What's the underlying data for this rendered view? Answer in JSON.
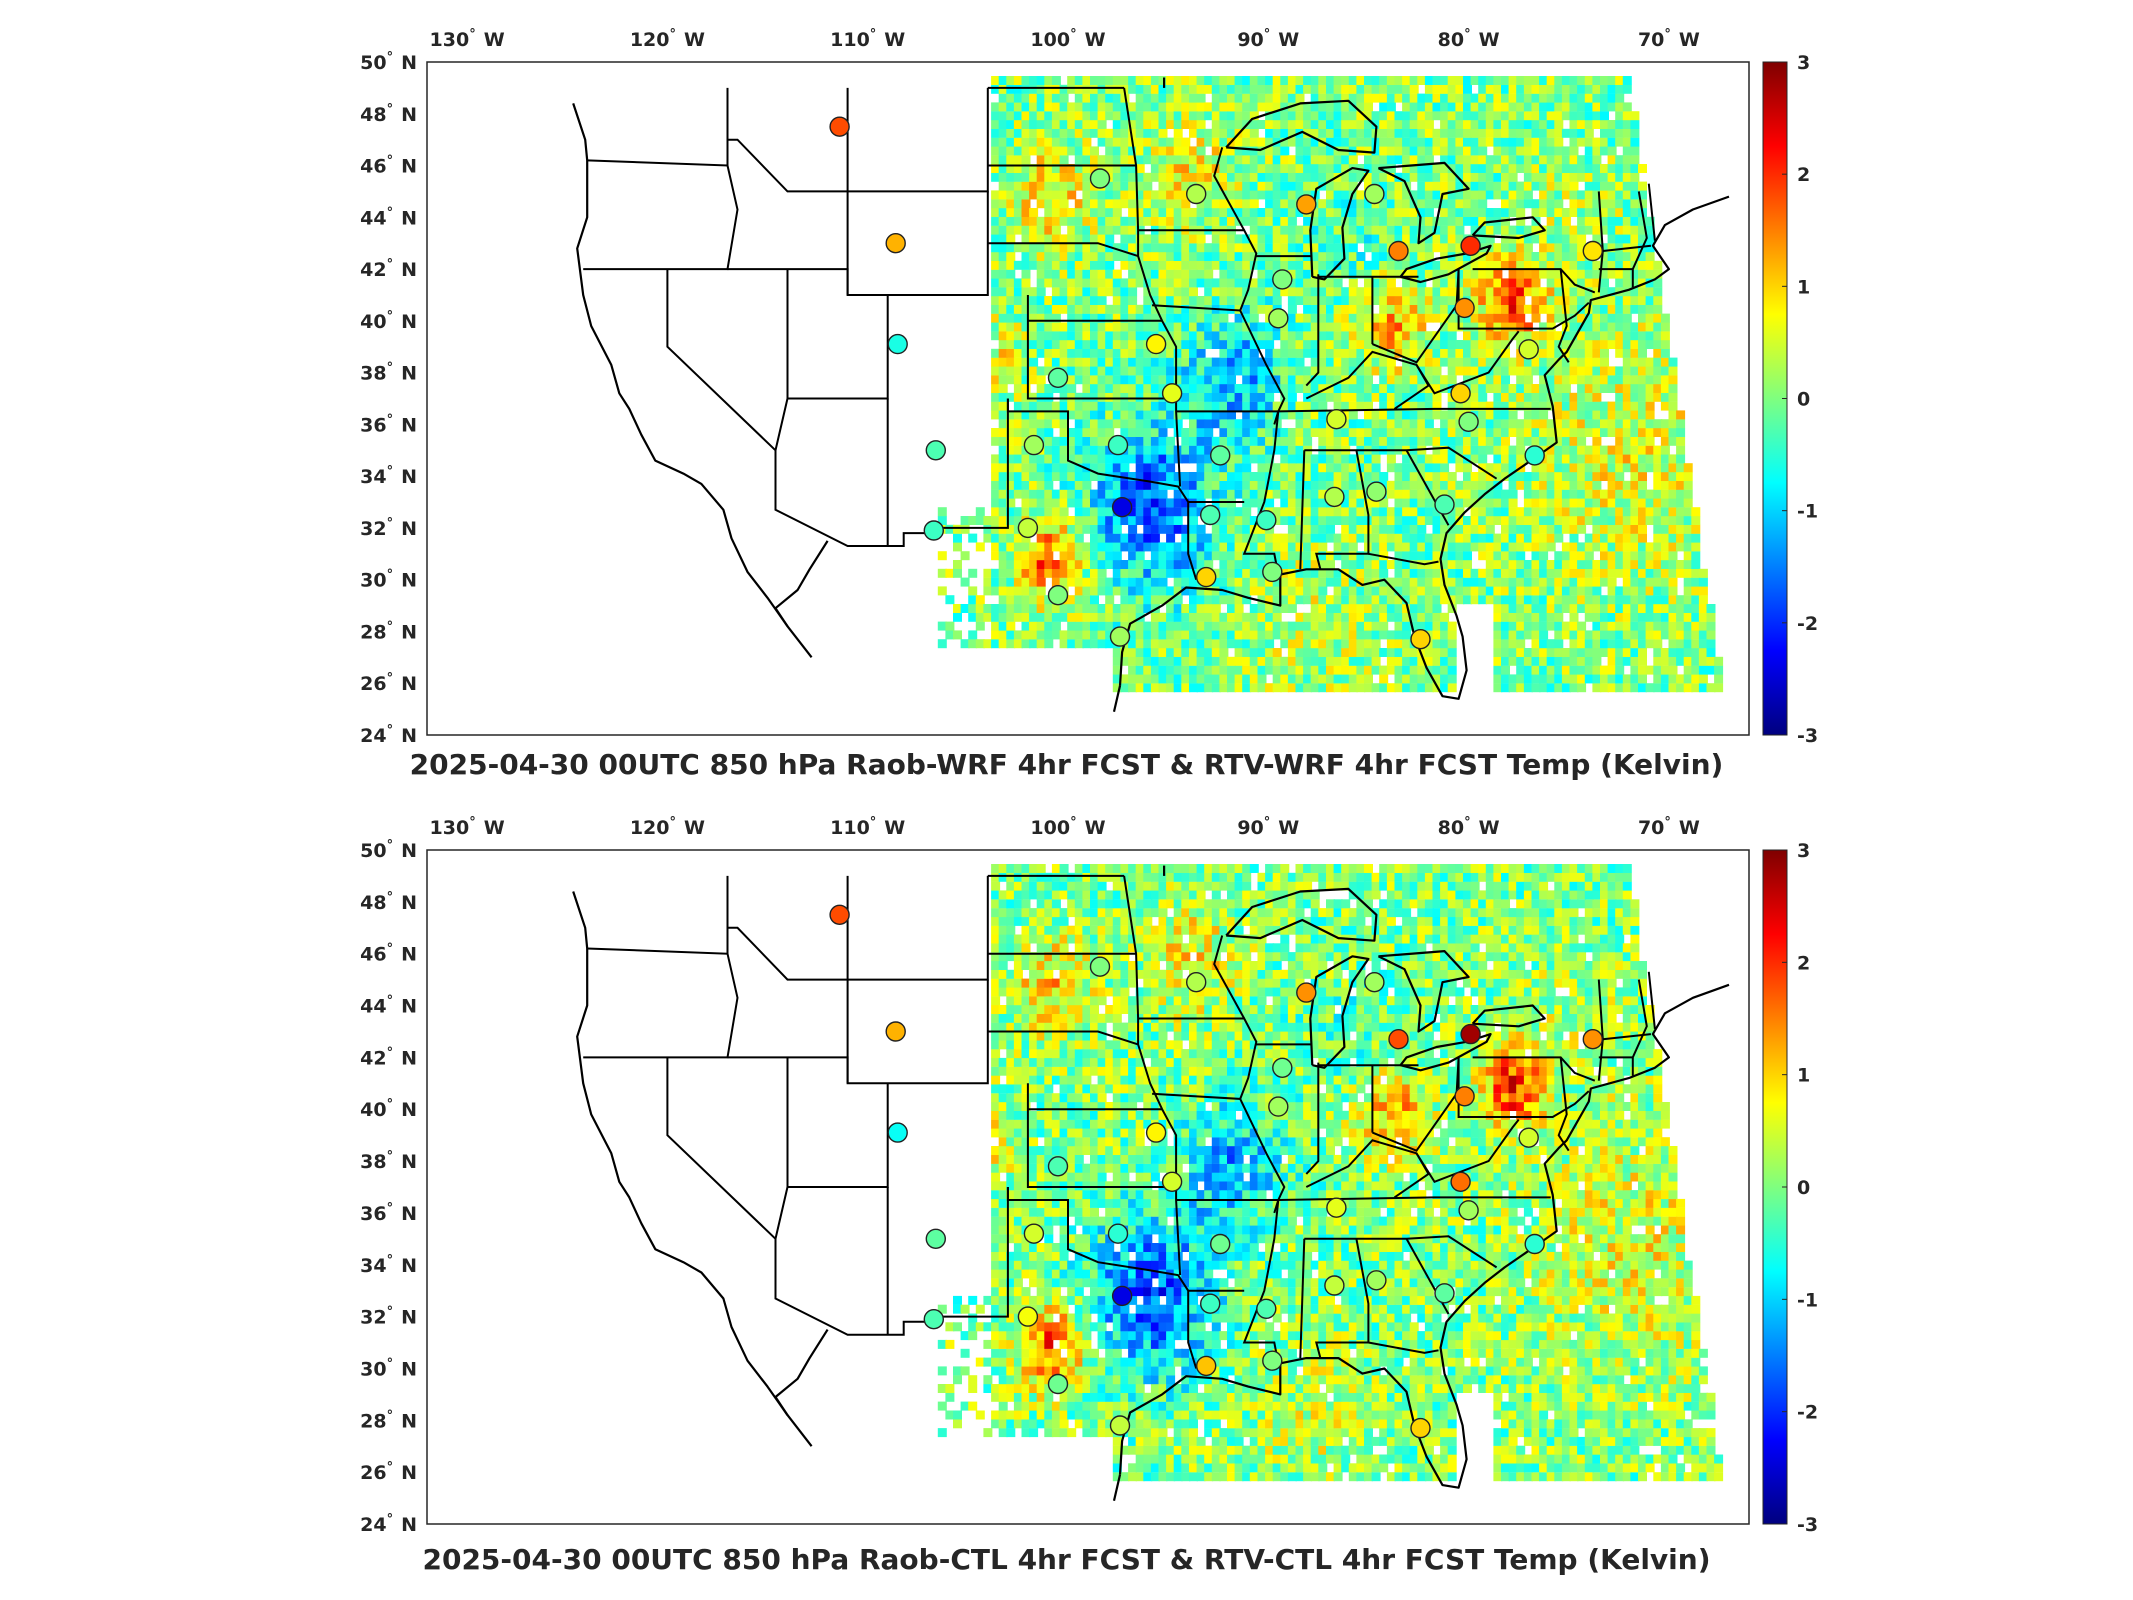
{
  "colorscale": {
    "stops": [
      "#00007f",
      "#0000ff",
      "#007fff",
      "#00ffff",
      "#7fff7f",
      "#ffff00",
      "#ff7f00",
      "#ff0000",
      "#7f0000"
    ],
    "min": -3,
    "max": 3
  },
  "map": {
    "lon_range": [
      -132,
      -66
    ],
    "lat_range": [
      24,
      50
    ],
    "lon_ticks": [
      {
        "value": -130,
        "label": "130 W"
      },
      {
        "value": -120,
        "label": "120 W"
      },
      {
        "value": -110,
        "label": "110 W"
      },
      {
        "value": -100,
        "label": "100 W"
      },
      {
        "value": -90,
        "label": "90 W"
      },
      {
        "value": -80,
        "label": "80 W"
      },
      {
        "value": -70,
        "label": "70 W"
      }
    ],
    "lat_ticks": [
      {
        "value": 50,
        "label": "50 N"
      },
      {
        "value": 48,
        "label": "48 N"
      },
      {
        "value": 46,
        "label": "46 N"
      },
      {
        "value": 44,
        "label": "44 N"
      },
      {
        "value": 42,
        "label": "42 N"
      },
      {
        "value": 40,
        "label": "40 N"
      },
      {
        "value": 38,
        "label": "38 N"
      },
      {
        "value": 36,
        "label": "36 N"
      },
      {
        "value": 34,
        "label": "34 N"
      },
      {
        "value": 32,
        "label": "32 N"
      },
      {
        "value": 30,
        "label": "30 N"
      },
      {
        "value": 28,
        "label": "28 N"
      },
      {
        "value": 26,
        "label": "26 N"
      },
      {
        "value": 24,
        "label": "24 N"
      }
    ],
    "colorbar_ticks": [
      "3",
      "2",
      "1",
      "0",
      "-1",
      "-2",
      "-3"
    ]
  },
  "panels": [
    {
      "title": "2025-04-30 00UTC 850 hPa Raob-WRF 4hr FCST & RTV-WRF 4hr FCST Temp (Kelvin)",
      "stations": [
        {
          "lon": -111.4,
          "lat": 47.5,
          "value": 1.8
        },
        {
          "lon": -108.6,
          "lat": 43.0,
          "value": 1.2
        },
        {
          "lon": -108.5,
          "lat": 39.1,
          "value": -0.6
        },
        {
          "lon": -106.6,
          "lat": 35.0,
          "value": -0.3
        },
        {
          "lon": -106.7,
          "lat": 31.9,
          "value": -0.4
        },
        {
          "lon": -101.7,
          "lat": 35.2,
          "value": 0.2
        },
        {
          "lon": -102.0,
          "lat": 32.0,
          "value": 0.4
        },
        {
          "lon": -97.5,
          "lat": 35.2,
          "value": -0.4
        },
        {
          "lon": -97.3,
          "lat": 32.8,
          "value": -2.4
        },
        {
          "lon": -100.5,
          "lat": 29.4,
          "value": 0.0
        },
        {
          "lon": -97.4,
          "lat": 27.8,
          "value": 0.2
        },
        {
          "lon": -100.5,
          "lat": 37.8,
          "value": -0.2
        },
        {
          "lon": -95.6,
          "lat": 39.1,
          "value": 0.8
        },
        {
          "lon": -94.8,
          "lat": 37.2,
          "value": 0.6
        },
        {
          "lon": -98.4,
          "lat": 45.5,
          "value": 0.0
        },
        {
          "lon": -93.6,
          "lat": 44.9,
          "value": 0.3
        },
        {
          "lon": -89.3,
          "lat": 41.6,
          "value": 0.0
        },
        {
          "lon": -88.1,
          "lat": 44.5,
          "value": 1.3
        },
        {
          "lon": -84.7,
          "lat": 44.9,
          "value": 0.2
        },
        {
          "lon": -83.5,
          "lat": 42.7,
          "value": 1.5
        },
        {
          "lon": -79.9,
          "lat": 42.9,
          "value": 2.0
        },
        {
          "lon": -73.8,
          "lat": 42.7,
          "value": 0.9
        },
        {
          "lon": -80.2,
          "lat": 40.5,
          "value": 1.4
        },
        {
          "lon": -77.0,
          "lat": 38.9,
          "value": 0.5
        },
        {
          "lon": -80.4,
          "lat": 37.2,
          "value": 1.0
        },
        {
          "lon": -86.6,
          "lat": 36.2,
          "value": 0.5
        },
        {
          "lon": -80.0,
          "lat": 36.1,
          "value": 0.0
        },
        {
          "lon": -89.5,
          "lat": 40.1,
          "value": 0.2
        },
        {
          "lon": -92.4,
          "lat": 34.8,
          "value": -0.2
        },
        {
          "lon": -90.1,
          "lat": 32.3,
          "value": -0.4
        },
        {
          "lon": -86.7,
          "lat": 33.2,
          "value": 0.3
        },
        {
          "lon": -84.6,
          "lat": 33.4,
          "value": 0.1
        },
        {
          "lon": -81.2,
          "lat": 32.9,
          "value": -0.3
        },
        {
          "lon": -76.7,
          "lat": 34.8,
          "value": -0.5
        },
        {
          "lon": -92.9,
          "lat": 32.5,
          "value": -0.3
        },
        {
          "lon": -93.1,
          "lat": 30.1,
          "value": 1.0
        },
        {
          "lon": -89.8,
          "lat": 30.3,
          "value": 0.0
        },
        {
          "lon": -82.4,
          "lat": 27.7,
          "value": 1.0
        }
      ]
    },
    {
      "title": "2025-04-30 00UTC 850 hPa Raob-CTL 4hr FCST & RTV-CTL 4hr FCST Temp (Kelvin)",
      "stations": [
        {
          "lon": -111.4,
          "lat": 47.5,
          "value": 1.8
        },
        {
          "lon": -108.6,
          "lat": 43.0,
          "value": 1.2
        },
        {
          "lon": -108.5,
          "lat": 39.1,
          "value": -0.7
        },
        {
          "lon": -106.6,
          "lat": 35.0,
          "value": -0.2
        },
        {
          "lon": -106.7,
          "lat": 31.9,
          "value": -0.3
        },
        {
          "lon": -101.7,
          "lat": 35.2,
          "value": 0.5
        },
        {
          "lon": -102.0,
          "lat": 32.0,
          "value": 0.7
        },
        {
          "lon": -97.5,
          "lat": 35.2,
          "value": -0.5
        },
        {
          "lon": -97.3,
          "lat": 32.8,
          "value": -2.4
        },
        {
          "lon": -100.5,
          "lat": 29.4,
          "value": -0.1
        },
        {
          "lon": -97.4,
          "lat": 27.8,
          "value": 0.4
        },
        {
          "lon": -100.5,
          "lat": 37.8,
          "value": -0.3
        },
        {
          "lon": -95.6,
          "lat": 39.1,
          "value": 0.8
        },
        {
          "lon": -94.8,
          "lat": 37.2,
          "value": 0.5
        },
        {
          "lon": -98.4,
          "lat": 45.5,
          "value": 0.0
        },
        {
          "lon": -93.6,
          "lat": 44.9,
          "value": 0.3
        },
        {
          "lon": -89.3,
          "lat": 41.6,
          "value": -0.1
        },
        {
          "lon": -88.1,
          "lat": 44.5,
          "value": 1.4
        },
        {
          "lon": -84.7,
          "lat": 44.9,
          "value": 0.2
        },
        {
          "lon": -83.5,
          "lat": 42.7,
          "value": 1.8
        },
        {
          "lon": -79.9,
          "lat": 42.9,
          "value": 2.8
        },
        {
          "lon": -73.8,
          "lat": 42.7,
          "value": 1.4
        },
        {
          "lon": -80.2,
          "lat": 40.5,
          "value": 1.5
        },
        {
          "lon": -77.0,
          "lat": 38.9,
          "value": 0.5
        },
        {
          "lon": -80.4,
          "lat": 37.2,
          "value": 1.6
        },
        {
          "lon": -86.6,
          "lat": 36.2,
          "value": 0.6
        },
        {
          "lon": -80.0,
          "lat": 36.1,
          "value": 0.2
        },
        {
          "lon": -89.5,
          "lat": 40.1,
          "value": 0.2
        },
        {
          "lon": -92.4,
          "lat": 34.8,
          "value": -0.1
        },
        {
          "lon": -90.1,
          "lat": 32.3,
          "value": -0.3
        },
        {
          "lon": -86.7,
          "lat": 33.2,
          "value": 0.4
        },
        {
          "lon": -84.6,
          "lat": 33.4,
          "value": 0.2
        },
        {
          "lon": -81.2,
          "lat": 32.9,
          "value": -0.2
        },
        {
          "lon": -76.7,
          "lat": 34.8,
          "value": -0.5
        },
        {
          "lon": -92.9,
          "lat": 32.5,
          "value": -0.4
        },
        {
          "lon": -93.1,
          "lat": 30.1,
          "value": 1.1
        },
        {
          "lon": -89.8,
          "lat": 30.3,
          "value": 0.0
        },
        {
          "lon": -82.4,
          "lat": 27.7,
          "value": 1.0
        }
      ]
    }
  ]
}
